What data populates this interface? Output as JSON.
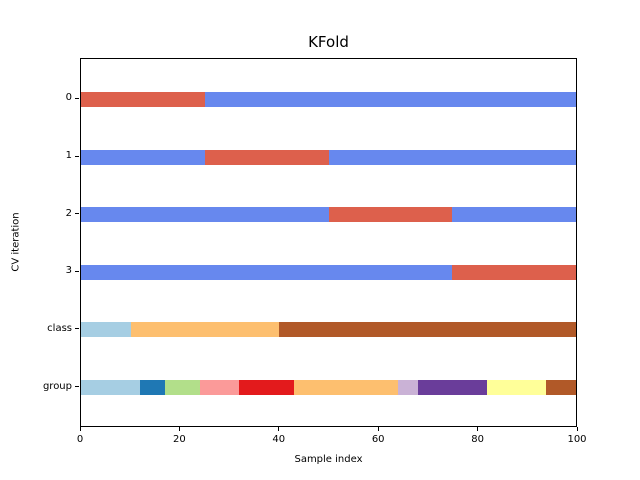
{
  "chart_data": {
    "type": "bar",
    "orientation": "horizontal",
    "title": "KFold",
    "xlabel": "Sample index",
    "ylabel": "CV iteration",
    "xlim": [
      0,
      100
    ],
    "xticks": [
      0,
      20,
      40,
      60,
      80,
      100
    ],
    "grid": false,
    "legend": "none",
    "colors": {
      "cv_train_blue": "#6788ee",
      "cv_test_red": "#dd604c"
    },
    "rows": [
      {
        "label": "0",
        "segments": [
          {
            "from": 0,
            "to": 25,
            "color": "#dd604c"
          },
          {
            "from": 25,
            "to": 100,
            "color": "#6788ee"
          }
        ]
      },
      {
        "label": "1",
        "segments": [
          {
            "from": 0,
            "to": 25,
            "color": "#6788ee"
          },
          {
            "from": 25,
            "to": 50,
            "color": "#dd604c"
          },
          {
            "from": 50,
            "to": 100,
            "color": "#6788ee"
          }
        ]
      },
      {
        "label": "2",
        "segments": [
          {
            "from": 0,
            "to": 50,
            "color": "#6788ee"
          },
          {
            "from": 50,
            "to": 75,
            "color": "#dd604c"
          },
          {
            "from": 75,
            "to": 100,
            "color": "#6788ee"
          }
        ]
      },
      {
        "label": "3",
        "segments": [
          {
            "from": 0,
            "to": 75,
            "color": "#6788ee"
          },
          {
            "from": 75,
            "to": 100,
            "color": "#dd604c"
          }
        ]
      },
      {
        "label": "class",
        "segments": [
          {
            "from": 0,
            "to": 10,
            "color": "#a6cee3"
          },
          {
            "from": 10,
            "to": 40,
            "color": "#fdbf6f"
          },
          {
            "from": 40,
            "to": 100,
            "color": "#b15928"
          }
        ]
      },
      {
        "label": "group",
        "segments": [
          {
            "from": 0,
            "to": 12,
            "color": "#a6cee3"
          },
          {
            "from": 12,
            "to": 17,
            "color": "#1f78b4"
          },
          {
            "from": 17,
            "to": 24,
            "color": "#b2df8a"
          },
          {
            "from": 24,
            "to": 32,
            "color": "#fb9a99"
          },
          {
            "from": 32,
            "to": 43,
            "color": "#e31a1c"
          },
          {
            "from": 43,
            "to": 64,
            "color": "#fdbf6f"
          },
          {
            "from": 64,
            "to": 68,
            "color": "#cab2d6"
          },
          {
            "from": 68,
            "to": 82,
            "color": "#6a3d9a"
          },
          {
            "from": 82,
            "to": 94,
            "color": "#ffff99"
          },
          {
            "from": 94,
            "to": 100,
            "color": "#b15928"
          }
        ]
      }
    ]
  }
}
